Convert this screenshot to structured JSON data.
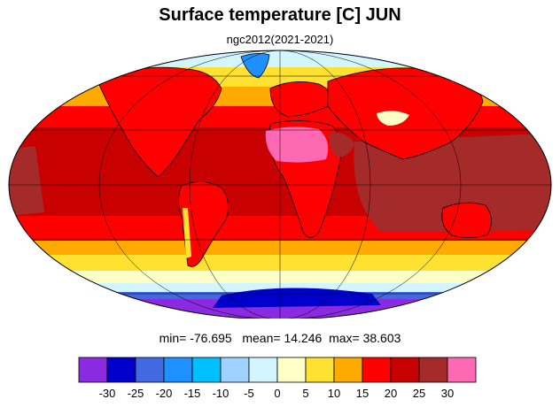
{
  "header": {
    "title": "Surface temperature [C] JUN",
    "subtitle": "ngc2012(2021-2021)"
  },
  "stats": {
    "min_label": "min=",
    "min": "-76.695",
    "mean_label": "mean=",
    "mean": "14.246",
    "max_label": "max=",
    "max": "38.603"
  },
  "colorbar": {
    "ticks": [
      "-30",
      "-25",
      "-20",
      "-15",
      "-10",
      "-5",
      "0",
      "5",
      "10",
      "15",
      "20",
      "25",
      "30"
    ],
    "colors": [
      "#8a2be2",
      "#0000cd",
      "#4169e1",
      "#1e90ff",
      "#00bfff",
      "#a0d2ff",
      "#d2f5ff",
      "#ffffc8",
      "#ffe132",
      "#ffaa00",
      "#ff0000",
      "#c80000",
      "#a52a2a",
      "#ff69b4"
    ]
  },
  "map": {
    "projection": "Mollweide",
    "field_colors": {
      "polar_south": "#8a2be2",
      "antarctic_mid": "#0000cd",
      "antarctic_edge": "#4169e1",
      "sea_ice": "#d2f5ff",
      "cold_ocean": "#ffffc8",
      "cool_ocean": "#ffe132",
      "mild_ocean": "#ffaa00",
      "warm": "#ff0000",
      "hot": "#c80000",
      "very_hot": "#a52a2a",
      "extreme": "#ff69b4",
      "greenland": "#1e90ff"
    }
  }
}
